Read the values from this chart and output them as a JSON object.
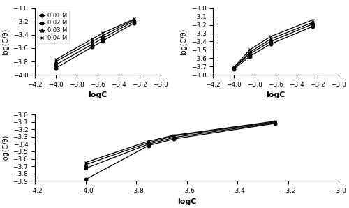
{
  "xlabel": "logC",
  "ylabel": "log(C/θ)",
  "xlim": [
    -4.2,
    -3.0
  ],
  "legend_labels": [
    "0.01 M",
    "0.02 M",
    "0.03 M",
    "0.04 M"
  ],
  "markers": [
    "o",
    "s",
    "^",
    "x"
  ],
  "subplot_a": {
    "ylim": [
      -4.0,
      -3.0
    ],
    "yticks": [
      -4.0,
      -3.8,
      -3.6,
      -3.4,
      -3.2,
      -3.0
    ],
    "xticks": [
      -4.2,
      -4.0,
      -3.8,
      -3.6,
      -3.4,
      -3.2,
      -3.0
    ],
    "lines": [
      {
        "x": [
          -4.0,
          -3.65,
          -3.55,
          -3.25
        ],
        "y": [
          -3.9,
          -3.58,
          -3.49,
          -3.22
        ]
      },
      {
        "x": [
          -4.0,
          -3.65,
          -3.55,
          -3.25
        ],
        "y": [
          -3.85,
          -3.54,
          -3.45,
          -3.19
        ]
      },
      {
        "x": [
          -4.0,
          -3.65,
          -3.55,
          -3.25
        ],
        "y": [
          -3.8,
          -3.5,
          -3.41,
          -3.17
        ]
      },
      {
        "x": [
          -4.0,
          -3.65,
          -3.55,
          -3.25
        ],
        "y": [
          -3.77,
          -3.46,
          -3.37,
          -3.16
        ]
      }
    ]
  },
  "subplot_b": {
    "ylim": [
      -3.8,
      -3.0
    ],
    "yticks": [
      -3.8,
      -3.7,
      -3.6,
      -3.5,
      -3.4,
      -3.3,
      -3.2,
      -3.1,
      -3.0
    ],
    "xticks": [
      -4.2,
      -4.0,
      -3.8,
      -3.6,
      -3.4,
      -3.2,
      -3.0
    ],
    "lines": [
      {
        "x": [
          -4.0,
          -3.85,
          -3.65,
          -3.25
        ],
        "y": [
          -3.73,
          -3.58,
          -3.43,
          -3.22
        ]
      },
      {
        "x": [
          -4.0,
          -3.85,
          -3.65,
          -3.25
        ],
        "y": [
          -3.72,
          -3.55,
          -3.4,
          -3.19
        ]
      },
      {
        "x": [
          -4.0,
          -3.85,
          -3.65,
          -3.25
        ],
        "y": [
          -3.72,
          -3.53,
          -3.37,
          -3.17
        ]
      },
      {
        "x": [
          -4.0,
          -3.85,
          -3.65,
          -3.25
        ],
        "y": [
          -3.71,
          -3.5,
          -3.34,
          -3.14
        ]
      }
    ]
  },
  "subplot_c": {
    "ylim": [
      -3.9,
      -3.0
    ],
    "yticks": [
      -3.9,
      -3.8,
      -3.7,
      -3.6,
      -3.5,
      -3.4,
      -3.3,
      -3.2,
      -3.1,
      -3.0
    ],
    "xticks": [
      -4.2,
      -4.0,
      -3.8,
      -3.6,
      -3.4,
      -3.2,
      -3.0
    ],
    "lines": [
      {
        "x": [
          -4.0,
          -3.75,
          -3.65,
          -3.25
        ],
        "y": [
          -3.88,
          -3.42,
          -3.33,
          -3.12
        ]
      },
      {
        "x": [
          -4.0,
          -3.75,
          -3.65,
          -3.25
        ],
        "y": [
          -3.73,
          -3.4,
          -3.31,
          -3.11
        ]
      },
      {
        "x": [
          -4.0,
          -3.75,
          -3.65,
          -3.25
        ],
        "y": [
          -3.68,
          -3.38,
          -3.29,
          -3.1
        ]
      },
      {
        "x": [
          -4.0,
          -3.75,
          -3.65,
          -3.25
        ],
        "y": [
          -3.65,
          -3.36,
          -3.28,
          -3.09
        ]
      }
    ]
  }
}
